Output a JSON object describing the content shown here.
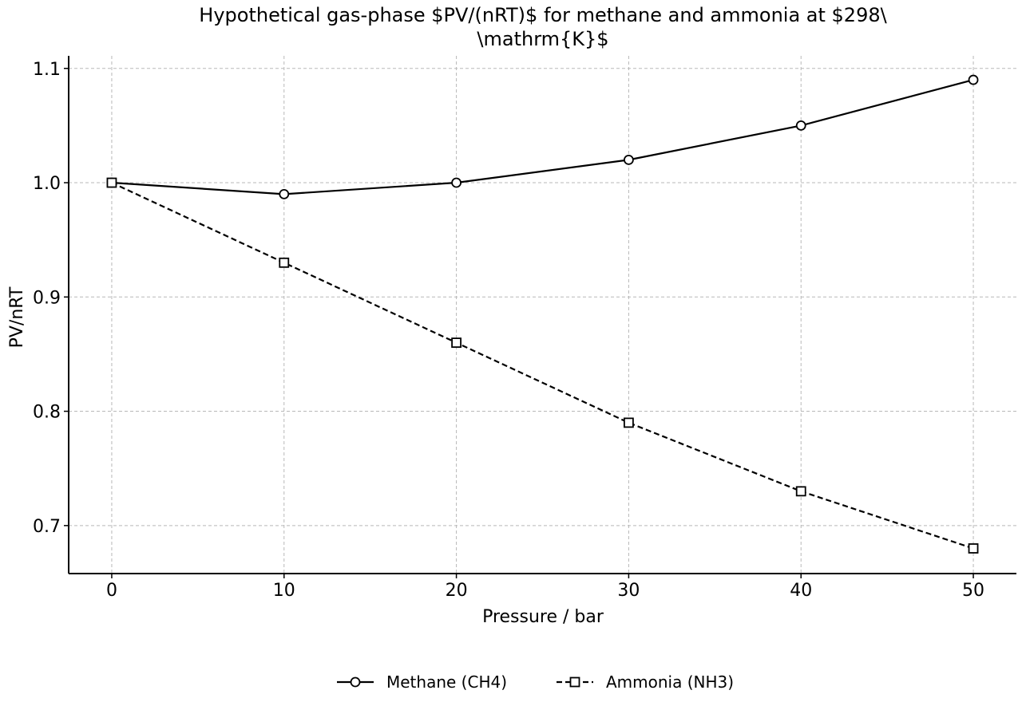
{
  "chart_data": {
    "type": "line",
    "title_lines": [
      "Hypothetical gas-phase $PV/(nRT)$ for methane and ammonia at $298\\",
      "\\mathrm{K}$"
    ],
    "xlabel": "Pressure / bar",
    "ylabel": "PV/nRT",
    "x": [
      0,
      10,
      20,
      30,
      40,
      50
    ],
    "xlim": [
      -2.5,
      52.5
    ],
    "ylim": [
      0.658,
      1.111
    ],
    "xticks": [
      0,
      10,
      20,
      30,
      40,
      50
    ],
    "yticks": [
      0.7,
      0.8,
      0.9,
      1.0,
      1.1
    ],
    "ytick_labels": [
      "0.7",
      "0.8",
      "0.9",
      "1.0",
      "1.1"
    ],
    "grid": true,
    "legend_position": "bottom-center",
    "series": [
      {
        "name": "Methane (CH4)",
        "values": [
          1.0,
          0.99,
          1.0,
          1.02,
          1.05,
          1.09
        ],
        "marker": "circle",
        "linestyle": "solid",
        "color": "#000000"
      },
      {
        "name": "Ammonia (NH3)",
        "values": [
          1.0,
          0.93,
          0.86,
          0.79,
          0.73,
          0.68
        ],
        "marker": "square",
        "linestyle": "dashed",
        "color": "#000000"
      }
    ]
  }
}
